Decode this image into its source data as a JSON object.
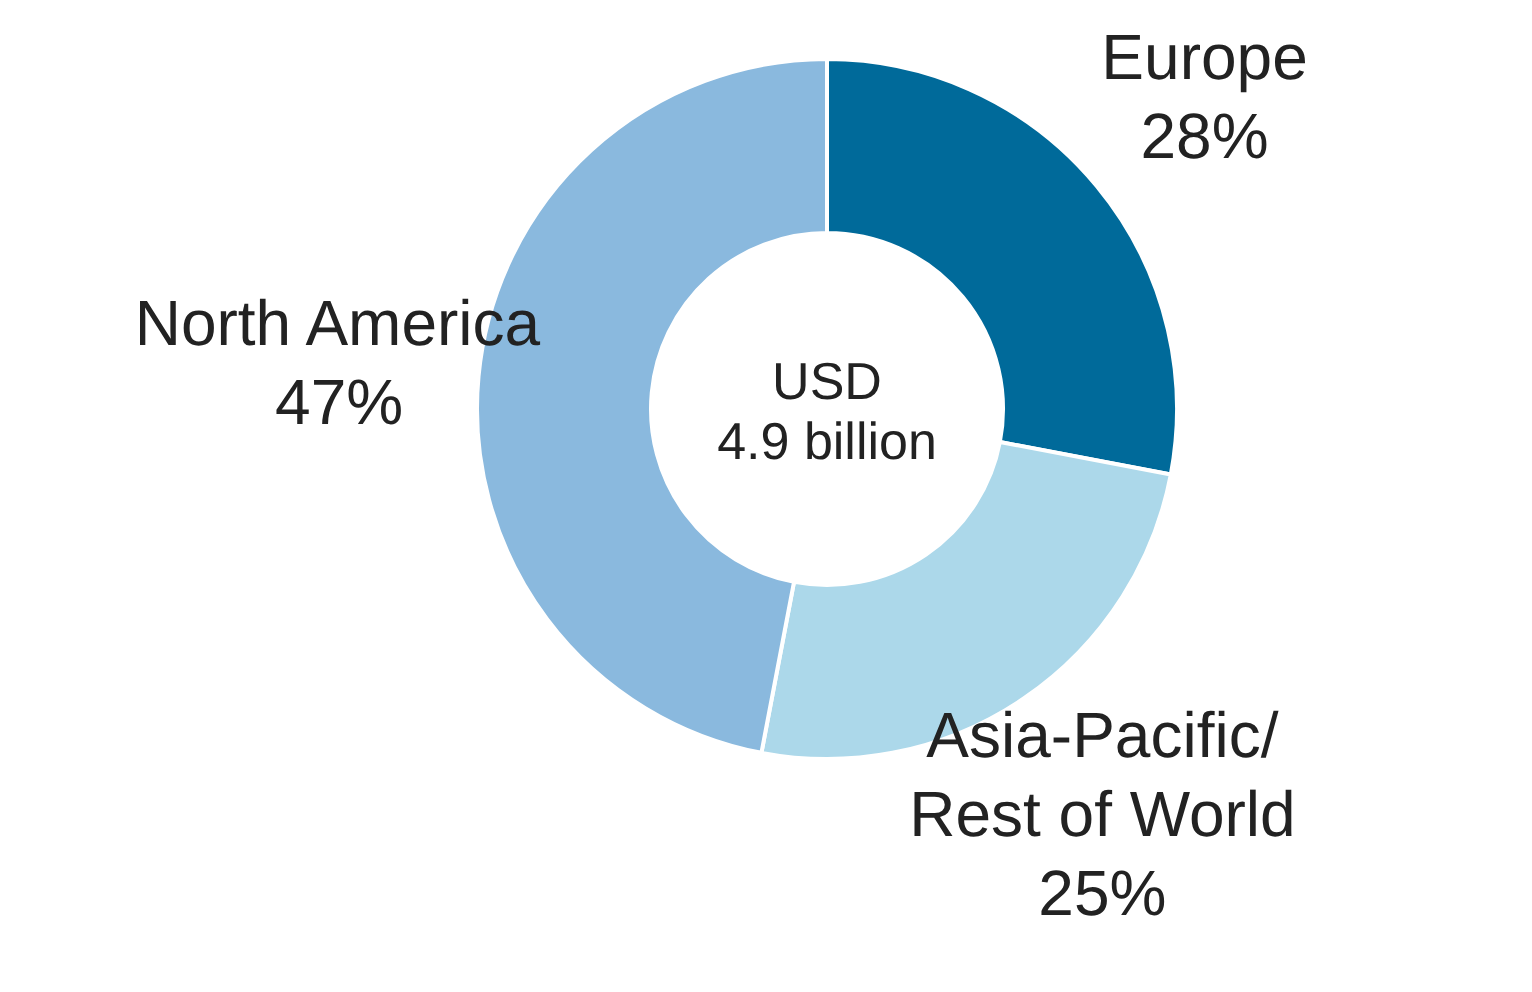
{
  "chart_data": {
    "type": "donut",
    "categories": [
      "Europe",
      "Asia-Pacific/ Rest of World",
      "North America"
    ],
    "values": [
      28,
      25,
      47
    ],
    "value_labels": [
      "28%",
      "25%",
      "47%"
    ],
    "colors": [
      "#006a9a",
      "#acd8ea",
      "#8ab9de"
    ],
    "annotations": [
      "USD",
      "4.9 billion"
    ],
    "legend": false
  }
}
